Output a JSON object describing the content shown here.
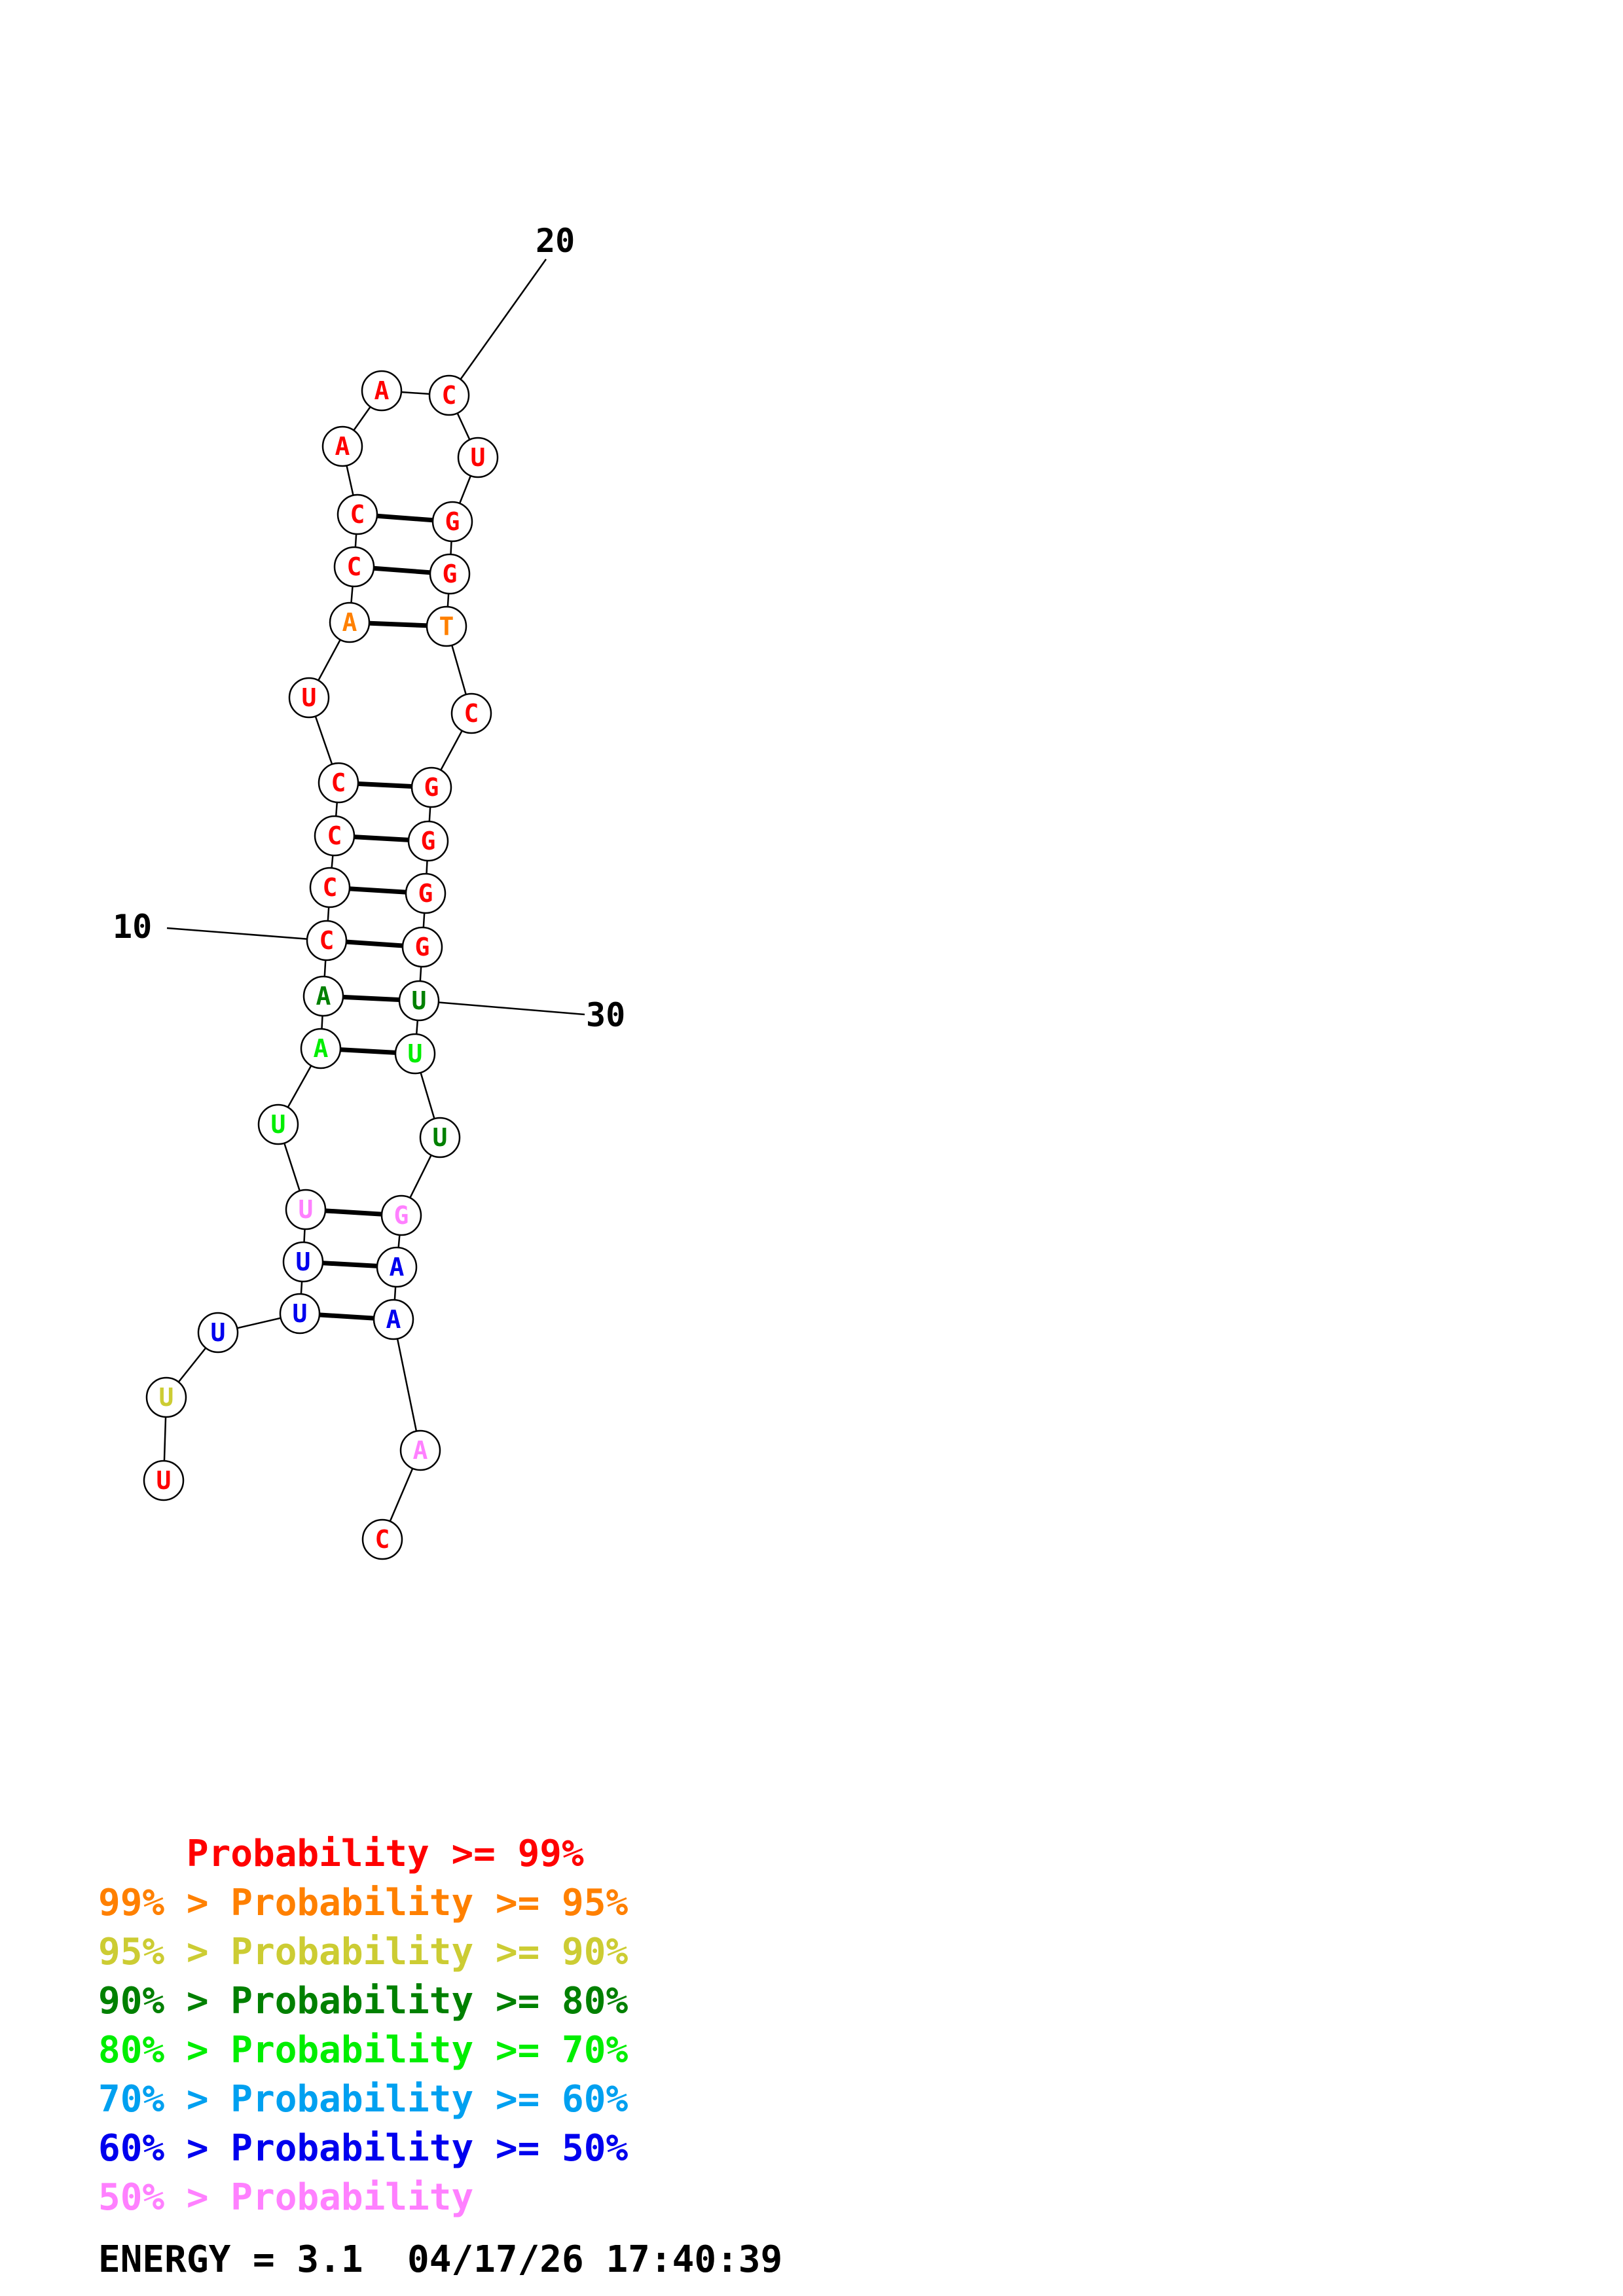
{
  "colors": {
    "p99": "#ff0000",
    "p95": "#ff8000",
    "p90": "#cccc33",
    "p80": "#008000",
    "p70": "#00ee00",
    "p60": "#00a0f0",
    "p50": "#0000ee",
    "plow": "#ff80ff"
  },
  "nucleotides": [
    {
      "n": 1,
      "base": "U",
      "p": "p99"
    },
    {
      "n": 2,
      "base": "U",
      "p": "p90"
    },
    {
      "n": 3,
      "base": "U",
      "p": "p50"
    },
    {
      "n": 4,
      "base": "U",
      "p": "p50"
    },
    {
      "n": 5,
      "base": "U",
      "p": "p50"
    },
    {
      "n": 6,
      "base": "U",
      "p": "plow"
    },
    {
      "n": 7,
      "base": "U",
      "p": "p70"
    },
    {
      "n": 8,
      "base": "A",
      "p": "p70"
    },
    {
      "n": 9,
      "base": "A",
      "p": "p80"
    },
    {
      "n": 10,
      "base": "C",
      "p": "p99"
    },
    {
      "n": 11,
      "base": "C",
      "p": "p99"
    },
    {
      "n": 12,
      "base": "C",
      "p": "p99"
    },
    {
      "n": 13,
      "base": "C",
      "p": "p99"
    },
    {
      "n": 14,
      "base": "U",
      "p": "p99"
    },
    {
      "n": 15,
      "base": "A",
      "p": "p95"
    },
    {
      "n": 16,
      "base": "C",
      "p": "p99"
    },
    {
      "n": 17,
      "base": "C",
      "p": "p99"
    },
    {
      "n": 18,
      "base": "A",
      "p": "p99"
    },
    {
      "n": 19,
      "base": "A",
      "p": "p99"
    },
    {
      "n": 20,
      "base": "C",
      "p": "p99"
    },
    {
      "n": 21,
      "base": "U",
      "p": "p99"
    },
    {
      "n": 22,
      "base": "G",
      "p": "p99"
    },
    {
      "n": 23,
      "base": "G",
      "p": "p99"
    },
    {
      "n": 24,
      "base": "T",
      "p": "p95"
    },
    {
      "n": 25,
      "base": "C",
      "p": "p99"
    },
    {
      "n": 26,
      "base": "G",
      "p": "p99"
    },
    {
      "n": 27,
      "base": "G",
      "p": "p99"
    },
    {
      "n": 28,
      "base": "G",
      "p": "p99"
    },
    {
      "n": 29,
      "base": "G",
      "p": "p99"
    },
    {
      "n": 30,
      "base": "U",
      "p": "p80"
    },
    {
      "n": 31,
      "base": "U",
      "p": "p70"
    },
    {
      "n": 32,
      "base": "U",
      "p": "p80"
    },
    {
      "n": 33,
      "base": "G",
      "p": "plow"
    },
    {
      "n": 34,
      "base": "A",
      "p": "p50"
    },
    {
      "n": 35,
      "base": "A",
      "p": "p50"
    },
    {
      "n": 36,
      "base": "A",
      "p": "plow"
    },
    {
      "n": 37,
      "base": "C",
      "p": "p99"
    }
  ],
  "base_pairs": [
    [
      4,
      35
    ],
    [
      5,
      34
    ],
    [
      6,
      33
    ],
    [
      8,
      31
    ],
    [
      9,
      30
    ],
    [
      10,
      29
    ],
    [
      11,
      28
    ],
    [
      12,
      27
    ],
    [
      13,
      26
    ],
    [
      15,
      24
    ],
    [
      16,
      23
    ],
    [
      17,
      22
    ]
  ],
  "position_labels": [
    {
      "n": 10,
      "text": "10"
    },
    {
      "n": 20,
      "text": "20"
    },
    {
      "n": 30,
      "text": "30"
    }
  ],
  "legend": [
    {
      "prefix": "    ",
      "prob": "Probability",
      "suffix": " >= 99%",
      "p": "p99"
    },
    {
      "prefix": "99% > ",
      "prob": "Probability",
      "suffix": " >= 95%",
      "p": "p95"
    },
    {
      "prefix": "95% > ",
      "prob": "Probability",
      "suffix": " >= 90%",
      "p": "p90"
    },
    {
      "prefix": "90% > ",
      "prob": "Probability",
      "suffix": " >= 80%",
      "p": "p80"
    },
    {
      "prefix": "80% > ",
      "prob": "Probability",
      "suffix": " >= 70%",
      "p": "p70"
    },
    {
      "prefix": "70% > ",
      "prob": "Probability",
      "suffix": " >= 60%",
      "p": "p60"
    },
    {
      "prefix": "60% > ",
      "prob": "Probability",
      "suffix": " >= 50%",
      "p": "p50"
    },
    {
      "prefix": "50% > ",
      "prob": "Probability",
      "suffix": "",
      "p": "plow"
    }
  ],
  "energy": {
    "label": "ENERGY = 3.1",
    "date": "04/17/26",
    "time": "17:40:39"
  }
}
